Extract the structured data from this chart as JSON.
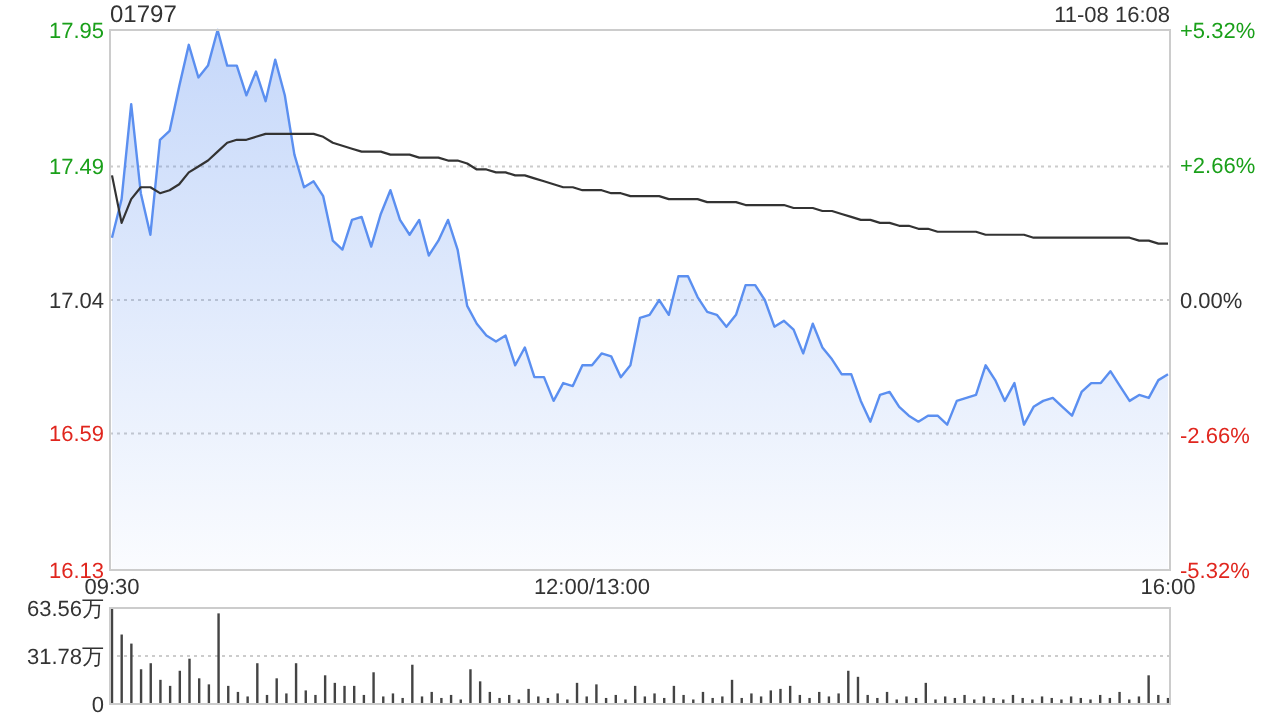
{
  "chart_data": [
    {
      "type": "area",
      "title": "01797",
      "annotations": [
        "11-08 16:08"
      ],
      "categories": [
        "09:30",
        null,
        null,
        null,
        null,
        null,
        null,
        null,
        null,
        null,
        null,
        null,
        null,
        null,
        null,
        null,
        null,
        null,
        null,
        null,
        null,
        null,
        null,
        null,
        null,
        null,
        null,
        null,
        null,
        null,
        null,
        null,
        null,
        null,
        null,
        null,
        null,
        null,
        null,
        null,
        null,
        null,
        null,
        null,
        null,
        null,
        null,
        null,
        null,
        null,
        "12:00/13:00",
        null,
        null,
        null,
        null,
        null,
        null,
        null,
        null,
        null,
        null,
        null,
        null,
        null,
        null,
        null,
        null,
        null,
        null,
        null,
        null,
        null,
        null,
        null,
        null,
        null,
        null,
        null,
        null,
        null,
        null,
        null,
        null,
        null,
        null,
        null,
        null,
        null,
        null,
        null,
        null,
        null,
        null,
        null,
        null,
        null,
        null,
        null,
        null,
        null,
        null,
        null,
        null,
        null,
        null,
        null,
        null,
        null,
        null,
        null,
        "16:00"
      ],
      "ylim": [
        16.13,
        17.95
      ],
      "yticks": [
        16.13,
        16.59,
        17.04,
        17.49,
        17.95
      ],
      "y2lim": [
        -5.32,
        5.32
      ],
      "y2ticks": [
        {
          "value": -5.32,
          "label": "-5.32%"
        },
        {
          "value": -2.66,
          "label": "-2.66%"
        },
        {
          "value": 0,
          "label": "0.00%"
        },
        {
          "value": 2.66,
          "label": "+2.66%"
        },
        {
          "value": 5.32,
          "label": "+5.32%"
        }
      ],
      "grid": "y",
      "series": [
        {
          "color": "#5b8ff0",
          "values": [
            17.25,
            17.38,
            17.7,
            17.4,
            17.26,
            17.58,
            17.61,
            17.76,
            17.9,
            17.79,
            17.83,
            17.95,
            17.83,
            17.83,
            17.73,
            17.81,
            17.71,
            17.85,
            17.73,
            17.53,
            17.42,
            17.44,
            17.39,
            17.24,
            17.21,
            17.31,
            17.32,
            17.22,
            17.33,
            17.41,
            17.31,
            17.26,
            17.31,
            17.19,
            17.24,
            17.31,
            17.21,
            17.02,
            16.96,
            16.92,
            16.9,
            16.92,
            16.82,
            16.88,
            16.78,
            16.78,
            16.7,
            16.76,
            16.75,
            16.82,
            16.82,
            16.86,
            16.85,
            16.78,
            16.82,
            16.98,
            16.99,
            17.04,
            16.99,
            17.12,
            17.12,
            17.05,
            17.0,
            16.99,
            16.95,
            16.99,
            17.09,
            17.09,
            17.04,
            16.95,
            16.97,
            16.94,
            16.86,
            16.96,
            16.88,
            16.84,
            16.79,
            16.79,
            16.7,
            16.63,
            16.72,
            16.73,
            16.68,
            16.65,
            16.63,
            16.65,
            16.65,
            16.62,
            16.7,
            16.71,
            16.72,
            16.82,
            16.77,
            16.7,
            16.76,
            16.62,
            16.68,
            16.7,
            16.71,
            16.68,
            16.65,
            16.73,
            16.76,
            16.76,
            16.8,
            16.75,
            16.7,
            16.72,
            16.71,
            16.77,
            16.79
          ]
        },
        {
          "type": "line",
          "color": "#333333",
          "values": [
            17.46,
            17.3,
            17.38,
            17.42,
            17.42,
            17.4,
            17.41,
            17.43,
            17.47,
            17.49,
            17.51,
            17.54,
            17.57,
            17.58,
            17.58,
            17.59,
            17.6,
            17.6,
            17.6,
            17.6,
            17.6,
            17.6,
            17.59,
            17.57,
            17.56,
            17.55,
            17.54,
            17.54,
            17.54,
            17.53,
            17.53,
            17.53,
            17.52,
            17.52,
            17.52,
            17.51,
            17.51,
            17.5,
            17.48,
            17.48,
            17.47,
            17.47,
            17.46,
            17.46,
            17.45,
            17.44,
            17.43,
            17.42,
            17.42,
            17.41,
            17.41,
            17.41,
            17.4,
            17.4,
            17.39,
            17.39,
            17.39,
            17.39,
            17.38,
            17.38,
            17.38,
            17.38,
            17.37,
            17.37,
            17.37,
            17.37,
            17.36,
            17.36,
            17.36,
            17.36,
            17.36,
            17.35,
            17.35,
            17.35,
            17.34,
            17.34,
            17.33,
            17.32,
            17.31,
            17.31,
            17.3,
            17.3,
            17.29,
            17.29,
            17.28,
            17.28,
            17.27,
            17.27,
            17.27,
            17.27,
            17.27,
            17.26,
            17.26,
            17.26,
            17.26,
            17.26,
            17.25,
            17.25,
            17.25,
            17.25,
            17.25,
            17.25,
            17.25,
            17.25,
            17.25,
            17.25,
            17.25,
            17.24,
            17.24,
            17.23,
            17.23
          ]
        }
      ]
    },
    {
      "type": "bar",
      "color": "#444444",
      "grid": "y",
      "categories": [
        null,
        null,
        null,
        null,
        null,
        null,
        null,
        null,
        null,
        null,
        null,
        null,
        null,
        null,
        null,
        null,
        null,
        null,
        null,
        null,
        null,
        null,
        null,
        null,
        null,
        null,
        null,
        null,
        null,
        null,
        null,
        null,
        null,
        null,
        null,
        null,
        null,
        null,
        null,
        null,
        null,
        null,
        null,
        null,
        null,
        null,
        null,
        null,
        null,
        null,
        null,
        null,
        null,
        null,
        null,
        null,
        null,
        null,
        null,
        null,
        null,
        null,
        null,
        null,
        null,
        null,
        null,
        null,
        null,
        null,
        null,
        null,
        null,
        null,
        null,
        null,
        null,
        null,
        null,
        null,
        null,
        null,
        null,
        null,
        null,
        null,
        null,
        null,
        null,
        null,
        null,
        null,
        null,
        null,
        null,
        null,
        null,
        null,
        null,
        null,
        null,
        null,
        null,
        null,
        null,
        null,
        null,
        null,
        null,
        null
      ],
      "ylim": [
        0,
        63.56
      ],
      "yticks": [
        0,
        {
          "value": 31.78,
          "label": "31.78万"
        },
        {
          "value": 63.56,
          "label": "63.56万"
        }
      ],
      "values": [
        63,
        46,
        40,
        23,
        27,
        16,
        12,
        22,
        30,
        17,
        13,
        60,
        12,
        8,
        5,
        27,
        6,
        17,
        7,
        27,
        9,
        6,
        19,
        14,
        12,
        12,
        6,
        21,
        5,
        7,
        4,
        26,
        5,
        8,
        4,
        6,
        3,
        23,
        15,
        8,
        4,
        6,
        3,
        10,
        5,
        4,
        7,
        3,
        14,
        5,
        13,
        4,
        6,
        3,
        12,
        5,
        7,
        4,
        12,
        6,
        3,
        8,
        4,
        5,
        16,
        4,
        7,
        5,
        9,
        10,
        12,
        6,
        4,
        8,
        5,
        7,
        22,
        18,
        6,
        4,
        8,
        3,
        5,
        4,
        14,
        3,
        5,
        4,
        6,
        3,
        5,
        4,
        3,
        6,
        4,
        3,
        5,
        4,
        3,
        5,
        4,
        3,
        6,
        4,
        8,
        3,
        5,
        19,
        6,
        4
      ]
    }
  ]
}
